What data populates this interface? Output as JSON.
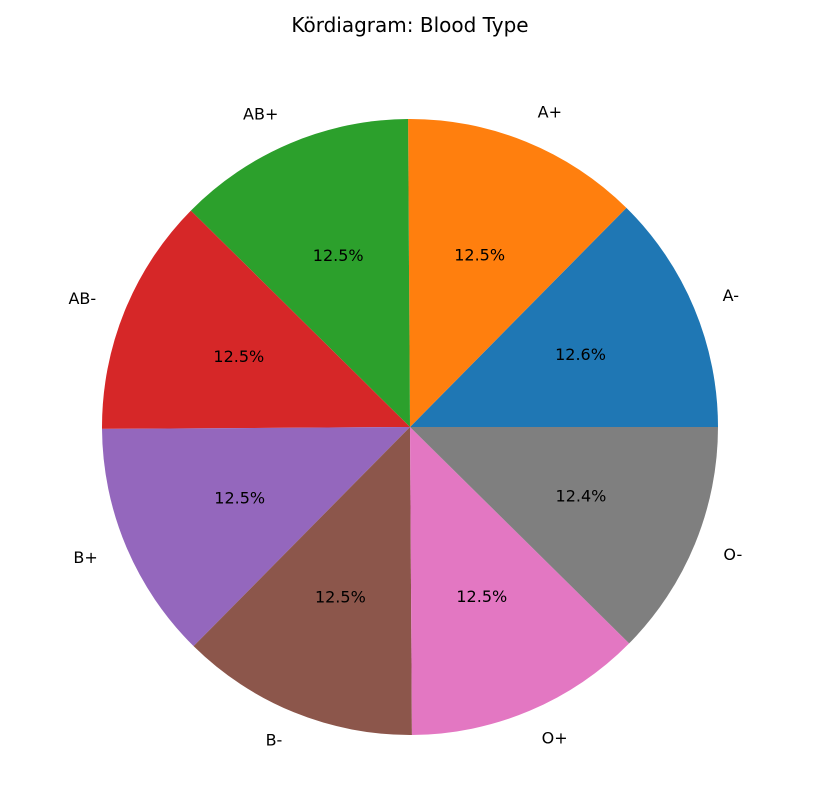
{
  "chart_data": {
    "type": "pie",
    "title": "Kördiagram: Blood Type",
    "start_angle_deg": 0,
    "direction": "counterclockwise",
    "slices": [
      {
        "label": "A-",
        "value": 12.6,
        "pct_label": "12.6%",
        "color": "#1f77b4"
      },
      {
        "label": "A+",
        "value": 12.5,
        "pct_label": "12.5%",
        "color": "#ff7f0e"
      },
      {
        "label": "AB+",
        "value": 12.5,
        "pct_label": "12.5%",
        "color": "#2ca02c"
      },
      {
        "label": "AB-",
        "value": 12.5,
        "pct_label": "12.5%",
        "color": "#d62728"
      },
      {
        "label": "B+",
        "value": 12.5,
        "pct_label": "12.5%",
        "color": "#9467bd"
      },
      {
        "label": "B-",
        "value": 12.5,
        "pct_label": "12.5%",
        "color": "#8c564b"
      },
      {
        "label": "O+",
        "value": 12.5,
        "pct_label": "12.5%",
        "color": "#e377c2"
      },
      {
        "label": "O-",
        "value": 12.4,
        "pct_label": "12.4%",
        "color": "#7f7f7f"
      }
    ]
  }
}
